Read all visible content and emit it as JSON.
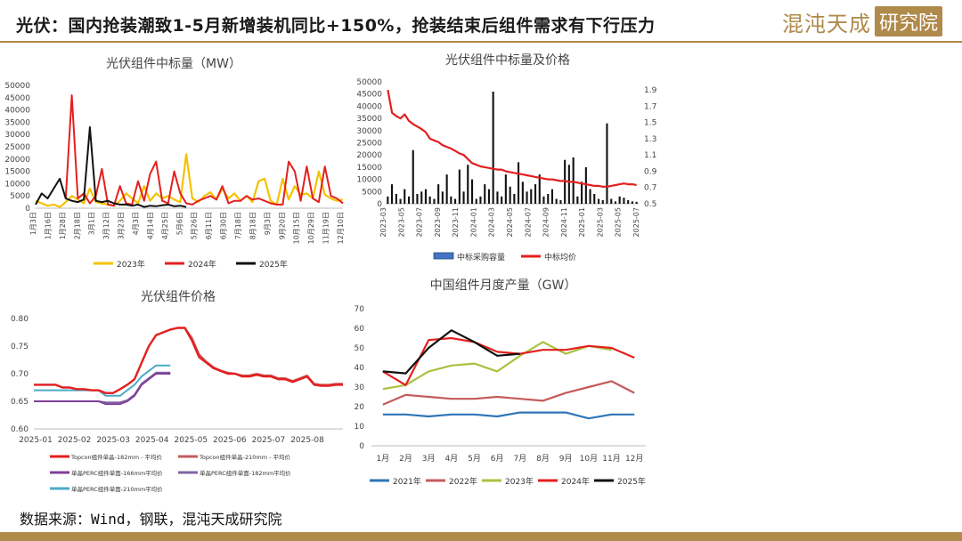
{
  "header": {
    "title": "光伏：国内抢装潮致1-5月新增装机同比+150%，抢装结束后组件需求有下行压力"
  },
  "logo": {
    "text_cn": "混沌天成",
    "text_box": "研究院"
  },
  "footer": {
    "source": "数据来源：Wind，钢联，混沌天成研究院"
  },
  "colors": {
    "accent": "#b08a4a",
    "red": "#e41f1f",
    "yellow": "#f5c200",
    "black": "#111111"
  },
  "chart_data": [
    {
      "id": "bid-volume",
      "type": "line",
      "title": "光伏组件中标量（MW）",
      "ylim": [
        0,
        50000
      ],
      "yticks": [
        0,
        5000,
        10000,
        15000,
        20000,
        25000,
        30000,
        35000,
        40000,
        45000,
        50000
      ],
      "xticks": [
        "1月3日",
        "1月16日",
        "1月28日",
        "2月18日",
        "3月1日",
        "3月12日",
        "3月23日",
        "4月3日",
        "4月14日",
        "4月25日",
        "5月6日",
        "5月26日",
        "6月11日",
        "6月30日",
        "7月18日",
        "8月18日",
        "9月3日",
        "9月20日",
        "10月15日",
        "10月29日",
        "11月19日",
        "12月10日"
      ],
      "x_count": 52,
      "series": [
        {
          "name": "2023年",
          "color": "#f5c200",
          "values": [
            3000,
            2000,
            1000,
            1500,
            500,
            2500,
            5000,
            3500,
            2000,
            8000,
            2500,
            2000,
            1500,
            1000,
            3000,
            6000,
            4000,
            2000,
            9000,
            3000,
            6000,
            4000,
            5000,
            3500,
            2500,
            22000,
            4000,
            2500,
            5000,
            6500,
            3500,
            8000,
            4000,
            6000,
            3000,
            5000,
            2500,
            11000,
            12000,
            3000,
            1500,
            12000,
            3500,
            9000,
            5500,
            6000,
            4000,
            15000,
            5500,
            4000,
            3000,
            3500
          ]
        },
        {
          "name": "2024年",
          "color": "#e41f1f",
          "values": [
            null,
            null,
            null,
            null,
            null,
            4000,
            46000,
            4000,
            6000,
            2000,
            5000,
            16000,
            1500,
            1000,
            9000,
            2000,
            1500,
            11000,
            3000,
            14000,
            19000,
            3000,
            2000,
            15000,
            6000,
            2000,
            1500,
            3000,
            4000,
            5000,
            3500,
            9000,
            2000,
            3000,
            3000,
            5000,
            3500,
            4000,
            3000,
            2000,
            1500,
            1500,
            19000,
            15000,
            3000,
            17000,
            4000,
            2500,
            17000,
            5000,
            4000,
            2000
          ]
        },
        {
          "name": "2025年",
          "color": "#111111",
          "values": [
            1500,
            6000,
            4000,
            8000,
            12000,
            4000,
            3000,
            2500,
            3500,
            33000,
            3000,
            2500,
            3000,
            2000,
            1500,
            1500,
            1000,
            1500,
            500,
            1000,
            800,
            1200,
            1500,
            800,
            1000,
            500,
            null,
            null,
            null,
            null,
            null,
            null,
            null,
            null,
            null,
            null,
            null,
            null,
            null,
            null,
            null,
            null,
            null,
            null,
            null,
            null,
            null,
            null,
            null,
            null,
            null,
            null
          ]
        }
      ]
    },
    {
      "id": "bid-volume-price",
      "type": "bar+line",
      "title": "光伏组件中标量及价格",
      "ylim": [
        0,
        50000
      ],
      "yticks": [
        0,
        5000,
        10000,
        15000,
        20000,
        25000,
        30000,
        35000,
        40000,
        45000,
        50000
      ],
      "y2lim": [
        0.5,
        2.0
      ],
      "y2ticks": [
        0.5,
        0.7,
        0.9,
        1.1,
        1.3,
        1.5,
        1.7,
        1.9
      ],
      "xticks": [
        "2023-03",
        "2023-05",
        "2023-07",
        "2023-09",
        "2023-11",
        "2024-01",
        "2024-03",
        "2024-05",
        "2024-07",
        "2024-09",
        "2024-11",
        "2025-01",
        "2025-03",
        "2025-05",
        "2025-07"
      ],
      "x_count": 60,
      "bars": {
        "name": "中标采购容量",
        "color": "#4472c4",
        "values": [
          3000,
          8000,
          4000,
          2000,
          6000,
          3000,
          22000,
          4000,
          5000,
          6000,
          3000,
          2000,
          8000,
          5000,
          12000,
          3000,
          2000,
          14000,
          5000,
          16000,
          10000,
          2000,
          3000,
          8000,
          6000,
          46000,
          5000,
          3000,
          12000,
          7000,
          4000,
          17000,
          9000,
          5000,
          6000,
          8000,
          12000,
          3000,
          4000,
          6000,
          2000,
          1500,
          18000,
          16000,
          19000,
          3000,
          9000,
          15000,
          6000,
          4000,
          2000,
          1500,
          33000,
          2000,
          1000,
          3000,
          2500,
          1500,
          1000,
          800
        ]
      },
      "line": {
        "name": "中标均价",
        "color": "#e41f1f",
        "values": [
          1.9,
          1.62,
          1.58,
          1.55,
          1.6,
          1.52,
          1.48,
          1.45,
          1.42,
          1.38,
          1.3,
          1.28,
          1.26,
          1.22,
          1.2,
          1.18,
          1.15,
          1.12,
          1.1,
          1.05,
          1.0,
          0.98,
          0.96,
          0.95,
          0.94,
          0.93,
          0.92,
          0.92,
          0.9,
          0.89,
          0.88,
          0.87,
          0.86,
          0.85,
          0.84,
          0.83,
          0.82,
          0.81,
          0.8,
          0.8,
          0.79,
          0.78,
          0.78,
          0.77,
          0.77,
          0.76,
          0.75,
          0.74,
          0.73,
          0.72,
          0.72,
          0.71,
          0.71,
          0.72,
          0.73,
          0.74,
          0.75,
          0.74,
          0.74,
          0.73
        ]
      }
    },
    {
      "id": "module-price",
      "type": "line",
      "title": "光伏组件价格",
      "ylim": [
        0.6,
        0.8
      ],
      "yticks": [
        0.6,
        0.65,
        0.7,
        0.75,
        0.8
      ],
      "xticks": [
        "2025-01",
        "2025-02",
        "2025-03",
        "2025-04",
        "2025-05",
        "2025-06",
        "2025-07",
        "2025-08"
      ],
      "x_count": 44,
      "series": [
        {
          "name": "Topcon组件单晶-182mm - 平均价",
          "color": "#e41f1f",
          "values": [
            0.68,
            0.68,
            0.68,
            0.68,
            0.675,
            0.675,
            0.672,
            0.672,
            0.67,
            0.67,
            0.665,
            0.665,
            0.672,
            0.68,
            0.69,
            0.72,
            0.75,
            0.77,
            0.775,
            0.78,
            0.783,
            0.783,
            0.76,
            0.73,
            0.72,
            0.71,
            0.705,
            0.7,
            0.7,
            0.695,
            0.695,
            0.698,
            0.695,
            0.695,
            0.69,
            0.69,
            0.685,
            0.69,
            0.695,
            0.68,
            0.678,
            0.678,
            0.68,
            0.68
          ]
        },
        {
          "name": "Topcon组件单晶-210mm - 平均价",
          "color": "#c55a5a",
          "values": [
            0.68,
            0.68,
            0.68,
            0.68,
            0.675,
            0.675,
            0.672,
            0.672,
            0.67,
            0.67,
            0.665,
            0.665,
            0.672,
            0.68,
            0.69,
            0.72,
            0.75,
            0.77,
            0.775,
            0.78,
            0.783,
            0.783,
            0.765,
            0.735,
            0.722,
            0.712,
            0.706,
            0.702,
            0.7,
            0.697,
            0.697,
            0.7,
            0.697,
            0.697,
            0.692,
            0.692,
            0.687,
            0.692,
            0.697,
            0.682,
            0.68,
            0.68,
            0.682,
            0.682
          ]
        },
        {
          "name": "单晶PERC组件单面-166mm平均价",
          "color": "#7f3f98",
          "values": [
            0.65,
            0.65,
            0.65,
            0.65,
            0.65,
            0.65,
            0.65,
            0.65,
            0.65,
            0.65,
            0.645,
            0.645,
            0.645,
            0.65,
            0.66,
            0.68,
            0.69,
            0.7,
            0.7,
            0.7,
            null,
            null,
            null,
            null,
            null,
            null,
            null,
            null,
            null,
            null,
            null,
            null,
            null,
            null,
            null,
            null,
            null,
            null,
            null,
            null,
            null,
            null,
            null,
            null
          ]
        },
        {
          "name": "单晶PERC组件单面-182mm平均价",
          "color": "#8064a2",
          "values": [
            0.65,
            0.65,
            0.65,
            0.65,
            0.65,
            0.65,
            0.65,
            0.65,
            0.65,
            0.65,
            0.648,
            0.648,
            0.648,
            0.652,
            0.662,
            0.682,
            0.692,
            0.702,
            0.702,
            0.702,
            null,
            null,
            null,
            null,
            null,
            null,
            null,
            null,
            null,
            null,
            null,
            null,
            null,
            null,
            null,
            null,
            null,
            null,
            null,
            null,
            null,
            null,
            null,
            null
          ]
        },
        {
          "name": "单晶PERC组件单面-210mm平均价",
          "color": "#4bacc6",
          "values": [
            0.67,
            0.67,
            0.67,
            0.67,
            0.67,
            0.67,
            0.67,
            0.67,
            0.67,
            0.67,
            0.66,
            0.66,
            0.66,
            0.67,
            0.68,
            0.695,
            0.705,
            0.715,
            0.715,
            0.715,
            null,
            null,
            null,
            null,
            null,
            null,
            null,
            null,
            null,
            null,
            null,
            null,
            null,
            null,
            null,
            null,
            null,
            null,
            null,
            null,
            null,
            null,
            null,
            null
          ]
        }
      ]
    },
    {
      "id": "monthly-output",
      "type": "line",
      "title": "中国组件月度产量（GW）",
      "ylim": [
        0,
        70
      ],
      "yticks": [
        0,
        10,
        20,
        30,
        40,
        50,
        60,
        70
      ],
      "categories": [
        "1月",
        "2月",
        "3月",
        "4月",
        "5月",
        "6月",
        "7月",
        "8月",
        "9月",
        "10月",
        "11月",
        "12月"
      ],
      "series": [
        {
          "name": "2021年",
          "color": "#2e75b6",
          "values": [
            16,
            16,
            15,
            16,
            16,
            15,
            17,
            17,
            17,
            14,
            16,
            16
          ]
        },
        {
          "name": "2022年",
          "color": "#c55a5a",
          "values": [
            21,
            26,
            25,
            24,
            24,
            25,
            24,
            23,
            27,
            30,
            33,
            27
          ]
        },
        {
          "name": "2023年",
          "color": "#a9c23f",
          "values": [
            29,
            31,
            38,
            41,
            42,
            38,
            46,
            53,
            47,
            51,
            49,
            null
          ]
        },
        {
          "name": "2024年",
          "color": "#e41f1f",
          "values": [
            38,
            31,
            54,
            55,
            53,
            48,
            47,
            49,
            49,
            51,
            50,
            45
          ]
        },
        {
          "name": "2025年",
          "color": "#111111",
          "values": [
            38,
            37,
            50,
            59,
            53,
            46,
            47,
            null,
            null,
            null,
            null,
            null
          ]
        }
      ]
    }
  ]
}
